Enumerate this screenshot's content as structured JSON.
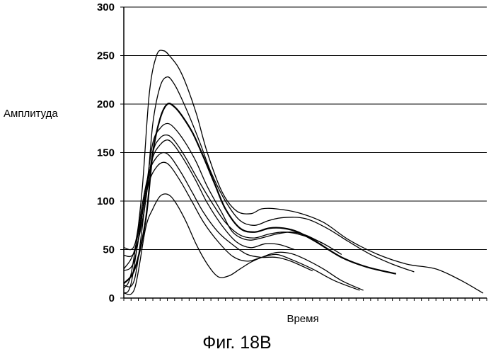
{
  "chart_data": {
    "type": "line",
    "title": "",
    "caption": "Фиг. 18B",
    "xlabel": "Время",
    "ylabel": "Амплитуда",
    "ylim": [
      0,
      300
    ],
    "yticks": [
      0,
      50,
      100,
      150,
      200,
      250,
      300
    ],
    "xlim": [
      0,
      100
    ],
    "grid": "horizontal",
    "legend": "none",
    "line_color": "#000000",
    "series": [
      {
        "x": [
          0,
          3,
          5,
          7,
          9,
          11,
          13,
          15,
          17,
          20,
          23,
          27,
          31,
          35,
          38,
          42,
          48,
          55,
          62,
          70,
          78,
          86,
          93,
          99
        ],
        "values": [
          52,
          55,
          110,
          210,
          250,
          255,
          248,
          238,
          222,
          190,
          150,
          110,
          90,
          87,
          92,
          92,
          88,
          78,
          60,
          45,
          35,
          30,
          18,
          5
        ]
      },
      {
        "x": [
          0,
          3,
          6,
          8,
          10,
          12,
          14,
          16,
          18,
          21,
          24,
          28,
          32,
          36,
          40,
          44,
          50,
          56,
          62,
          68,
          74,
          80
        ],
        "values": [
          44,
          48,
          100,
          180,
          218,
          228,
          220,
          205,
          188,
          160,
          130,
          100,
          80,
          75,
          80,
          83,
          82,
          72,
          58,
          45,
          35,
          27
        ]
      },
      {
        "x": [
          0,
          3,
          6,
          8,
          10,
          12,
          14,
          16,
          19,
          22,
          25,
          28,
          32,
          36,
          40,
          44,
          48,
          53,
          60,
          67,
          75
        ],
        "values": [
          15,
          30,
          80,
          150,
          185,
          200,
          197,
          188,
          170,
          145,
          118,
          92,
          72,
          68,
          72,
          72,
          68,
          58,
          42,
          32,
          25
        ]
      },
      {
        "x": [
          0,
          3,
          6,
          8,
          10,
          12,
          14,
          17,
          20,
          23,
          27,
          30,
          34,
          38,
          42,
          46,
          50,
          55
        ],
        "values": [
          28,
          40,
          110,
          160,
          175,
          180,
          175,
          160,
          140,
          115,
          88,
          68,
          60,
          62,
          66,
          68,
          65,
          56
        ]
      },
      {
        "x": [
          0,
          3,
          6,
          8,
          10,
          12,
          14,
          17,
          20,
          24,
          28,
          32,
          36,
          40,
          44,
          48,
          54,
          60
        ],
        "values": [
          13,
          20,
          100,
          150,
          165,
          168,
          162,
          145,
          125,
          100,
          78,
          65,
          62,
          66,
          68,
          66,
          58,
          45
        ]
      },
      {
        "x": [
          0,
          3,
          6,
          8,
          10,
          12,
          14,
          17,
          20,
          23,
          27,
          31,
          35,
          39,
          43,
          47
        ],
        "values": [
          30,
          50,
          110,
          145,
          158,
          163,
          157,
          140,
          120,
          98,
          75,
          58,
          52,
          56,
          55,
          50
        ]
      },
      {
        "x": [
          0,
          2,
          5,
          7,
          9,
          11,
          13,
          16,
          19,
          22,
          26,
          30,
          34,
          38,
          42,
          46,
          52
        ],
        "values": [
          10,
          25,
          95,
          130,
          145,
          150,
          145,
          128,
          108,
          88,
          68,
          55,
          45,
          42,
          42,
          38,
          28
        ]
      },
      {
        "x": [
          0,
          2,
          5,
          7,
          9,
          11,
          13,
          16,
          19,
          22,
          26,
          30,
          34,
          38,
          42,
          46,
          52,
          58,
          65
        ],
        "values": [
          5,
          15,
          85,
          120,
          135,
          140,
          135,
          118,
          98,
          78,
          58,
          43,
          38,
          42,
          45,
          40,
          30,
          18,
          8
        ]
      },
      {
        "x": [
          0,
          3,
          6,
          8,
          10,
          12,
          14,
          17,
          20,
          23,
          26,
          29,
          32,
          35,
          38,
          42,
          46,
          50,
          55,
          60,
          66
        ],
        "values": [
          5,
          10,
          72,
          92,
          105,
          107,
          100,
          80,
          55,
          35,
          22,
          23,
          30,
          37,
          42,
          47,
          46,
          40,
          30,
          18,
          8
        ]
      }
    ]
  }
}
